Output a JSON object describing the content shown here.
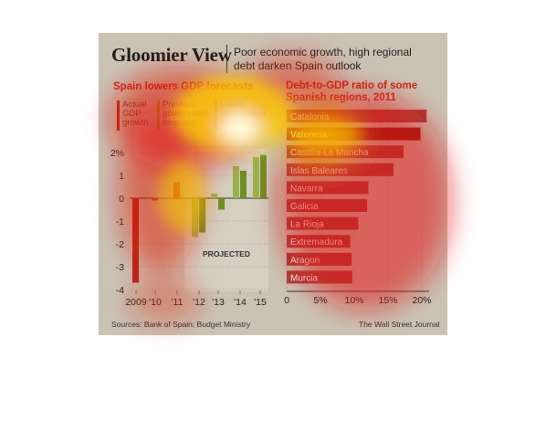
{
  "header": {
    "title": "Gloomier View",
    "subtitle_line1": "Poor economic growth, high regional",
    "subtitle_line2": "debt darken Spain outlook"
  },
  "left_panel": {
    "title": "Spain lowers GDP forecasts",
    "legend": [
      {
        "line1": "Actual",
        "line2": "GDP",
        "line3": "growth",
        "color": "#b52a1d"
      },
      {
        "line1": "Previous",
        "line2": "government",
        "line3": "forecasts",
        "color": "#9ab24a"
      },
      {
        "line1": "Latest",
        "line2": "government",
        "line3": "forecasts",
        "color": "#6f8f25"
      }
    ],
    "projected_label": "PROJECTED"
  },
  "right_panel": {
    "title_line1": "Debt-to-GDP ratio of some",
    "title_line2": "Spanish regions, 2011"
  },
  "footer": {
    "source": "Sources: Bank of Spain; Budget Ministry",
    "credit": "The Wall Street Journal"
  },
  "colors": {
    "background": "#c9c3b4",
    "actual": "#b52a1d",
    "previous": "#9ab24a",
    "latest": "#6f8f25",
    "region_bar": "#a6413a",
    "region_bar_highlight": "#8a1c14",
    "title_red": "#c8281c"
  },
  "chart_data": [
    {
      "type": "bar",
      "title": "Spain lowers GDP forecasts",
      "categories": [
        "2009",
        "'10",
        "'11",
        "'12",
        "'13",
        "'14",
        "'15"
      ],
      "series": [
        {
          "name": "Actual GDP growth",
          "values": [
            -3.7,
            -0.1,
            0.7,
            null,
            null,
            null,
            null
          ]
        },
        {
          "name": "Previous government forecasts",
          "values": [
            null,
            null,
            null,
            -1.7,
            0.2,
            1.4,
            1.8
          ]
        },
        {
          "name": "Latest government forecasts",
          "values": [
            null,
            null,
            null,
            -1.5,
            -0.5,
            1.2,
            1.9
          ]
        }
      ],
      "y_ticks": [
        "2%",
        "1",
        "0",
        "-1",
        "-2",
        "-3",
        "-4"
      ],
      "ylim": [
        -4,
        2
      ],
      "annotation": "PROJECTED"
    },
    {
      "type": "bar",
      "orientation": "horizontal",
      "title": "Debt-to-GDP ratio of some Spanish regions, 2011",
      "categories": [
        "Catalonia",
        "Valencia",
        "Castilla-La Mancha",
        "Islas Baleares",
        "Navarra",
        "Galicia",
        "La Rioja",
        "Extremadura",
        "Aragon",
        "Murcia"
      ],
      "values": [
        20.7,
        19.8,
        17.3,
        15.8,
        12.1,
        11.9,
        10.6,
        9.4,
        9.6,
        9.7
      ],
      "highlight": "Valencia",
      "x_ticks": [
        "0",
        "5%",
        "10%",
        "15%",
        "20%"
      ],
      "xlim": [
        0,
        22
      ]
    }
  ]
}
